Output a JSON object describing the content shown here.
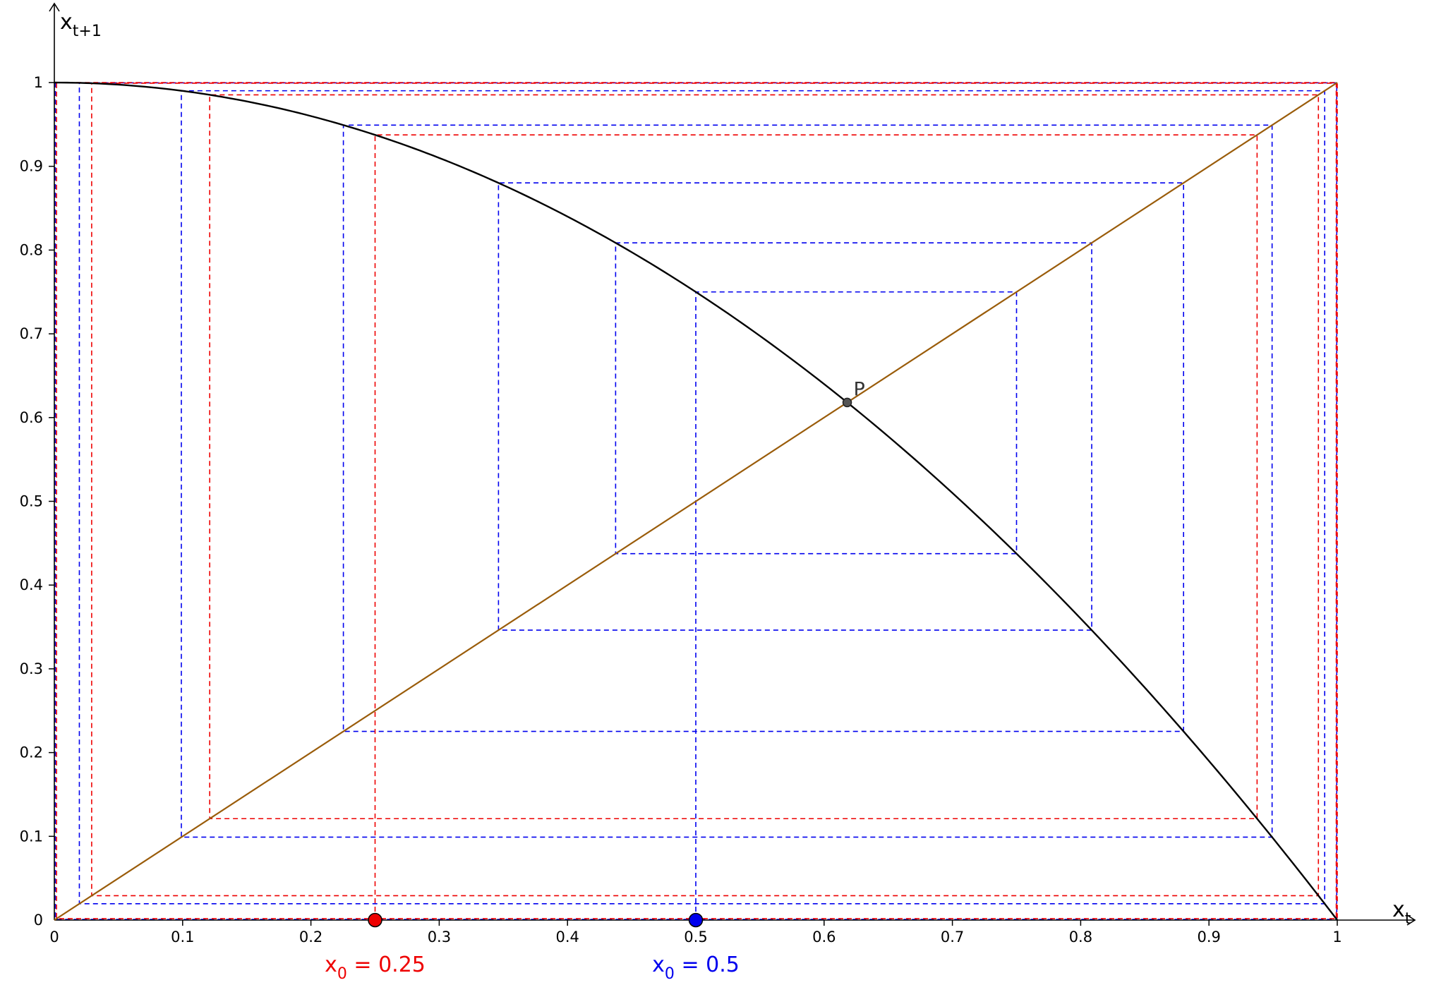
{
  "chart_data": {
    "type": "line",
    "title": "",
    "xlabel": {
      "base": "x",
      "sub": "t"
    },
    "ylabel": {
      "base": "x",
      "sub": "t+1"
    },
    "xlim": [
      0,
      1
    ],
    "ylim": [
      0,
      1
    ],
    "grid": false,
    "x_ticks": [
      0,
      0.1,
      0.2,
      0.3,
      0.4,
      0.5,
      0.6,
      0.7,
      0.8,
      0.9,
      1
    ],
    "x_tick_labels": [
      "0",
      "0.1",
      "0.2",
      "0.3",
      "0.4",
      "0.5",
      "0.6",
      "0.7",
      "0.8",
      "0.9",
      "1"
    ],
    "y_ticks": [
      0,
      0.1,
      0.2,
      0.3,
      0.4,
      0.5,
      0.6,
      0.7,
      0.8,
      0.9,
      1
    ],
    "y_tick_labels": [
      "0",
      "0.1",
      "0.2",
      "0.3",
      "0.4",
      "0.5",
      "0.6",
      "0.7",
      "0.8",
      "0.9",
      "1"
    ],
    "map": "x_{t+1} = 1 - x_t^2",
    "series": [
      {
        "kind": "curve",
        "color": "#000000",
        "x": [
          0,
          0.1,
          0.2,
          0.3,
          0.4,
          0.5,
          0.6,
          0.7,
          0.8,
          0.9,
          1
        ],
        "y": [
          1,
          0.99,
          0.96,
          0.91,
          0.84,
          0.75,
          0.64,
          0.51,
          0.36,
          0.19,
          0
        ]
      },
      {
        "kind": "diagonal",
        "color": "#9a5c0a",
        "x": [
          0,
          1
        ],
        "y": [
          0,
          1
        ]
      },
      {
        "kind": "cobweb",
        "color": "#0000ee",
        "x0": 0.5,
        "orbit": [
          0.5,
          0.75,
          0.4375,
          0.8086,
          0.3462,
          0.8802,
          0.2253,
          0.9492,
          0.099,
          0.9902,
          0.0195,
          0.9996,
          0.0008,
          1.0
        ]
      },
      {
        "kind": "cobweb",
        "color": "#ee0000",
        "x0": 0.25,
        "orbit": [
          0.25,
          0.9375,
          0.1211,
          0.9853,
          0.0291,
          0.9992,
          0.0017,
          1.0,
          0.0
        ]
      }
    ],
    "points": [
      {
        "label": "P",
        "x": 0.618,
        "y": 0.618,
        "color": "#444444"
      }
    ],
    "initial_points": [
      {
        "name": "x",
        "sub": "0",
        "value_text": " = 0.25",
        "x": 0.25,
        "color": "#ee0000"
      },
      {
        "name": "x",
        "sub": "0",
        "value_text": " = 0.5",
        "x": 0.5,
        "color": "#0000ee"
      }
    ]
  }
}
